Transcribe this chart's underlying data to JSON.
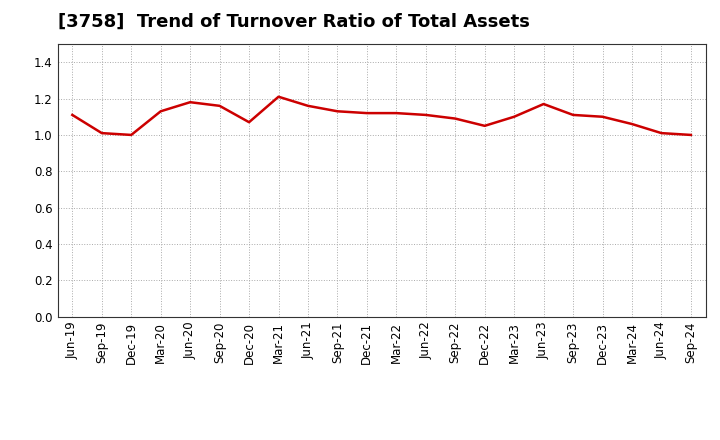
{
  "title": "[3758]  Trend of Turnover Ratio of Total Assets",
  "x_labels": [
    "Jun-19",
    "Sep-19",
    "Dec-19",
    "Mar-20",
    "Jun-20",
    "Sep-20",
    "Dec-20",
    "Mar-21",
    "Jun-21",
    "Sep-21",
    "Dec-21",
    "Mar-22",
    "Jun-22",
    "Sep-22",
    "Dec-22",
    "Mar-23",
    "Jun-23",
    "Sep-23",
    "Dec-23",
    "Mar-24",
    "Jun-24",
    "Sep-24"
  ],
  "y_values": [
    1.11,
    1.01,
    1.0,
    1.13,
    1.18,
    1.16,
    1.07,
    1.21,
    1.16,
    1.13,
    1.12,
    1.12,
    1.11,
    1.09,
    1.05,
    1.1,
    1.17,
    1.11,
    1.1,
    1.06,
    1.01,
    1.0
  ],
  "line_color": "#cc0000",
  "background_color": "#ffffff",
  "grid_color": "#aaaaaa",
  "ylim": [
    0.0,
    1.5
  ],
  "yticks": [
    0.0,
    0.2,
    0.4,
    0.6,
    0.8,
    1.0,
    1.2,
    1.4
  ],
  "title_fontsize": 13,
  "tick_fontsize": 8.5,
  "line_width": 1.8
}
